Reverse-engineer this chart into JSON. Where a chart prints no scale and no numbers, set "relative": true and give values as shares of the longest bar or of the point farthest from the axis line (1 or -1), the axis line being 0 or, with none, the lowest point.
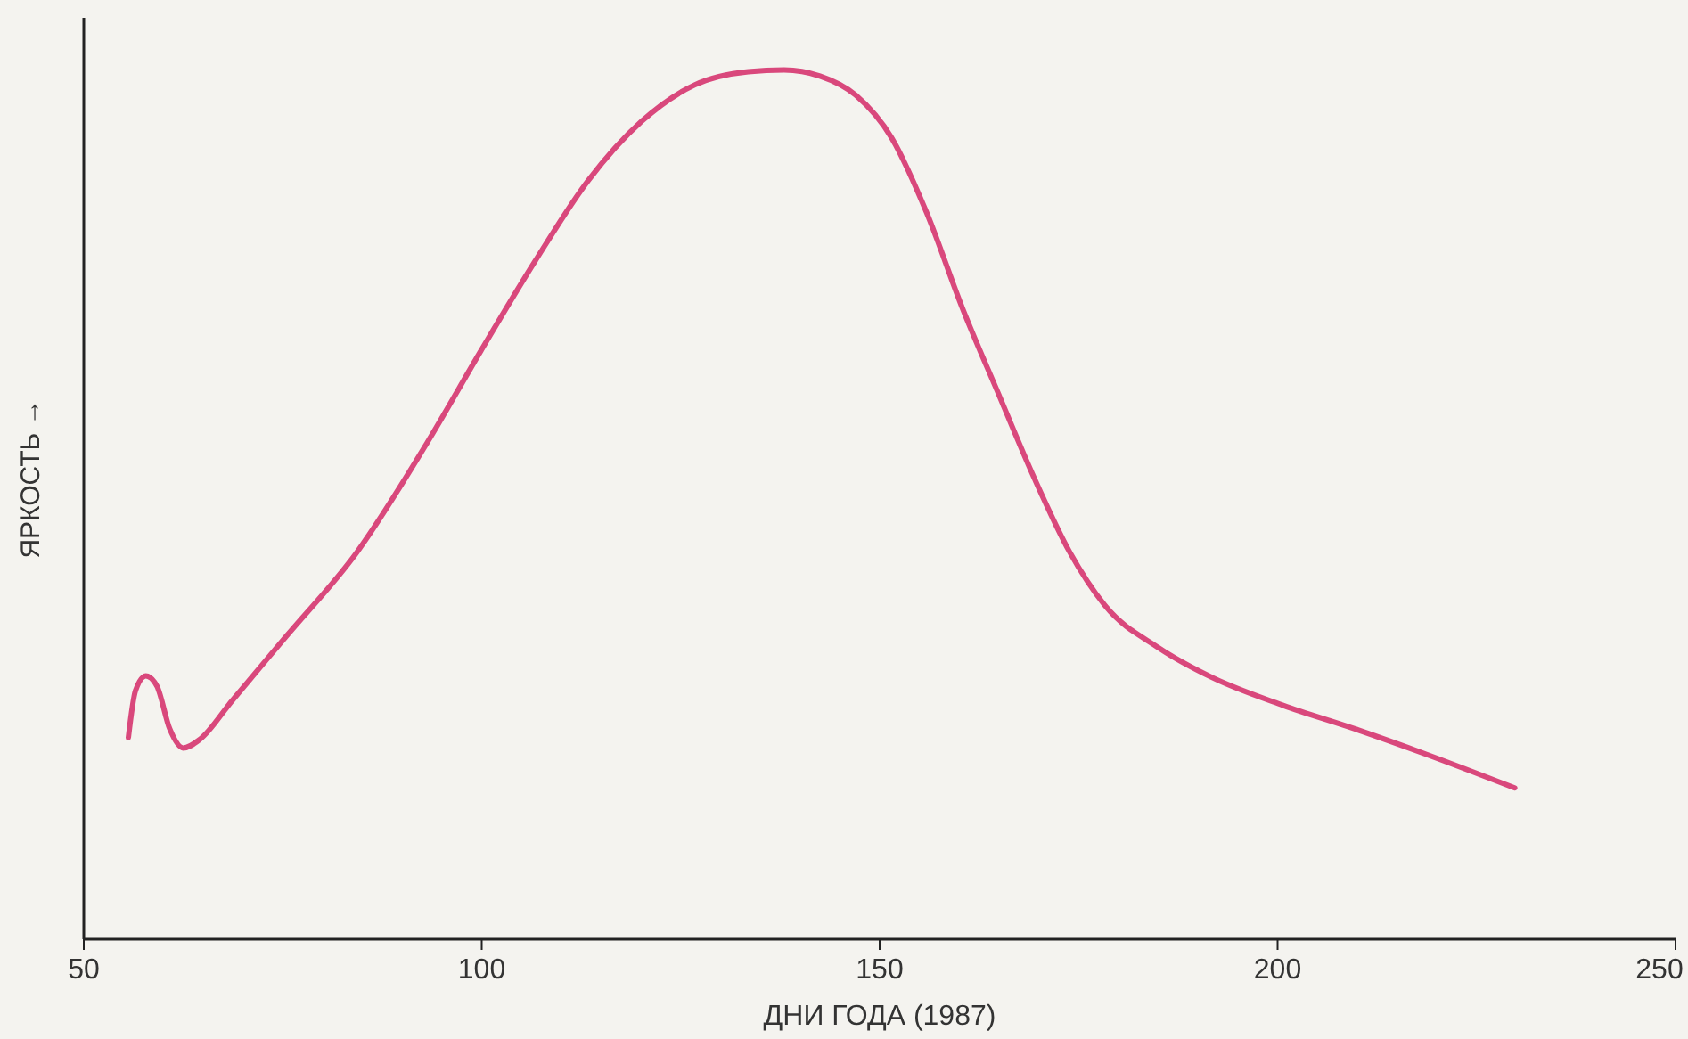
{
  "chart_data": {
    "type": "line",
    "relative": true,
    "xlabel": "ДНИ ГОДА (1987)",
    "ylabel": "ЯРКОСТЬ →",
    "xlim": [
      50,
      250
    ],
    "xticks": [
      50,
      100,
      150,
      200,
      250
    ],
    "marker": "none",
    "line_style": "solid",
    "series": [
      {
        "color": "#d9487c",
        "x": [
          55.6,
          56.5,
          57.8,
          59.2,
          60.8,
          62.5,
          64.6,
          68.6,
          75.3,
          84.3,
          93.2,
          99.9,
          106.7,
          113.4,
          120.1,
          126.8,
          133.5,
          138.0,
          142.5,
          147.0,
          151.5,
          155.9,
          160.4,
          164.9,
          169.4,
          173.9,
          178.3,
          185.1,
          191.8,
          200.7,
          209.7,
          218.6,
          229.8
        ],
        "values": [
          0.232,
          0.286,
          0.303,
          0.291,
          0.242,
          0.22,
          0.23,
          0.274,
          0.347,
          0.445,
          0.572,
          0.677,
          0.78,
          0.873,
          0.941,
          0.983,
          0.998,
          1.0,
          0.993,
          0.971,
          0.922,
          0.836,
          0.726,
          0.628,
          0.531,
          0.445,
          0.384,
          0.335,
          0.301,
          0.269,
          0.242,
          0.213,
          0.174
        ]
      }
    ]
  }
}
